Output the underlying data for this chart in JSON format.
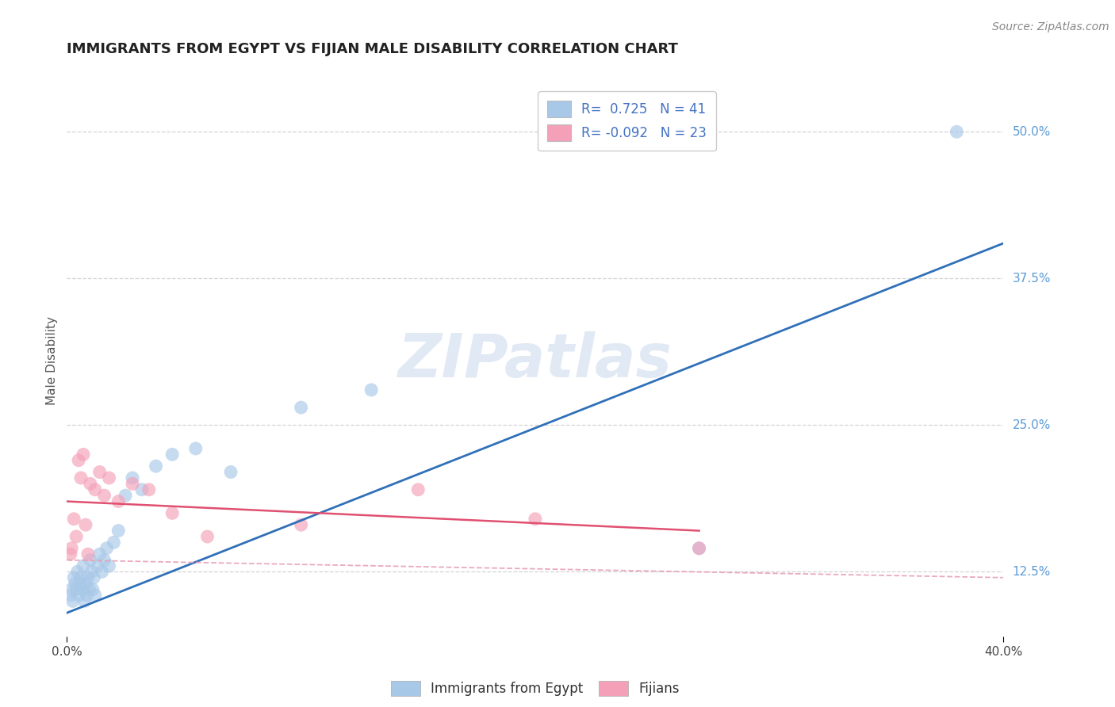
{
  "title": "IMMIGRANTS FROM EGYPT VS FIJIAN MALE DISABILITY CORRELATION CHART",
  "source": "Source: ZipAtlas.com",
  "ylabel": "Male Disability",
  "xlim": [
    0.0,
    40.0
  ],
  "ylim": [
    7.0,
    54.0
  ],
  "y_ticks_right": [
    12.5,
    25.0,
    37.5,
    50.0
  ],
  "y_tick_labels_right": [
    "12.5%",
    "25.0%",
    "37.5%",
    "50.0%"
  ],
  "blue_color": "#a8c8e8",
  "pink_color": "#f4a0b8",
  "blue_line_color": "#3070b8",
  "pink_line_color": "#e05070",
  "pink_dash_color": "#e8a0b8",
  "blue_scatter_x": [
    0.15,
    0.2,
    0.25,
    0.3,
    0.35,
    0.4,
    0.45,
    0.5,
    0.55,
    0.6,
    0.65,
    0.7,
    0.75,
    0.8,
    0.85,
    0.9,
    0.95,
    1.0,
    1.05,
    1.1,
    1.15,
    1.2,
    1.3,
    1.4,
    1.5,
    1.6,
    1.7,
    1.8,
    2.0,
    2.2,
    2.5,
    2.8,
    3.2,
    3.8,
    4.5,
    5.5,
    7.0,
    10.0,
    13.0,
    27.0,
    38.0
  ],
  "blue_scatter_y": [
    10.5,
    11.0,
    10.0,
    12.0,
    11.5,
    11.0,
    12.5,
    10.5,
    11.5,
    12.0,
    11.0,
    13.0,
    10.0,
    11.5,
    10.5,
    12.0,
    11.0,
    13.5,
    12.5,
    11.0,
    12.0,
    10.5,
    13.0,
    14.0,
    12.5,
    13.5,
    14.5,
    13.0,
    15.0,
    16.0,
    19.0,
    20.5,
    19.5,
    21.5,
    22.5,
    23.0,
    21.0,
    26.5,
    28.0,
    14.5,
    50.0
  ],
  "pink_scatter_x": [
    0.15,
    0.2,
    0.3,
    0.4,
    0.5,
    0.6,
    0.7,
    0.8,
    0.9,
    1.0,
    1.2,
    1.4,
    1.6,
    1.8,
    2.2,
    2.8,
    3.5,
    4.5,
    6.0,
    10.0,
    15.0,
    20.0,
    27.0
  ],
  "pink_scatter_y": [
    14.0,
    14.5,
    17.0,
    15.5,
    22.0,
    20.5,
    22.5,
    16.5,
    14.0,
    20.0,
    19.5,
    21.0,
    19.0,
    20.5,
    18.5,
    20.0,
    19.5,
    17.5,
    15.5,
    16.5,
    19.5,
    17.0,
    14.5
  ],
  "blue_line_x0": 0.0,
  "blue_line_x1": 40.0,
  "blue_line_y0": 9.0,
  "blue_line_y1": 40.5,
  "pink_line_x0": 0.0,
  "pink_line_x1": 27.0,
  "pink_line_y0": 18.5,
  "pink_line_y1": 16.0,
  "pink_dash_x0": 0.0,
  "pink_dash_x1": 40.0,
  "pink_dash_y0": 13.5,
  "pink_dash_y1": 12.0,
  "watermark": "ZIPatlas",
  "background_color": "#ffffff",
  "grid_color": "#c8c8c8",
  "title_fontsize": 13,
  "axis_label_fontsize": 11,
  "tick_fontsize": 11,
  "legend_fontsize": 12,
  "scatter_size": 150
}
